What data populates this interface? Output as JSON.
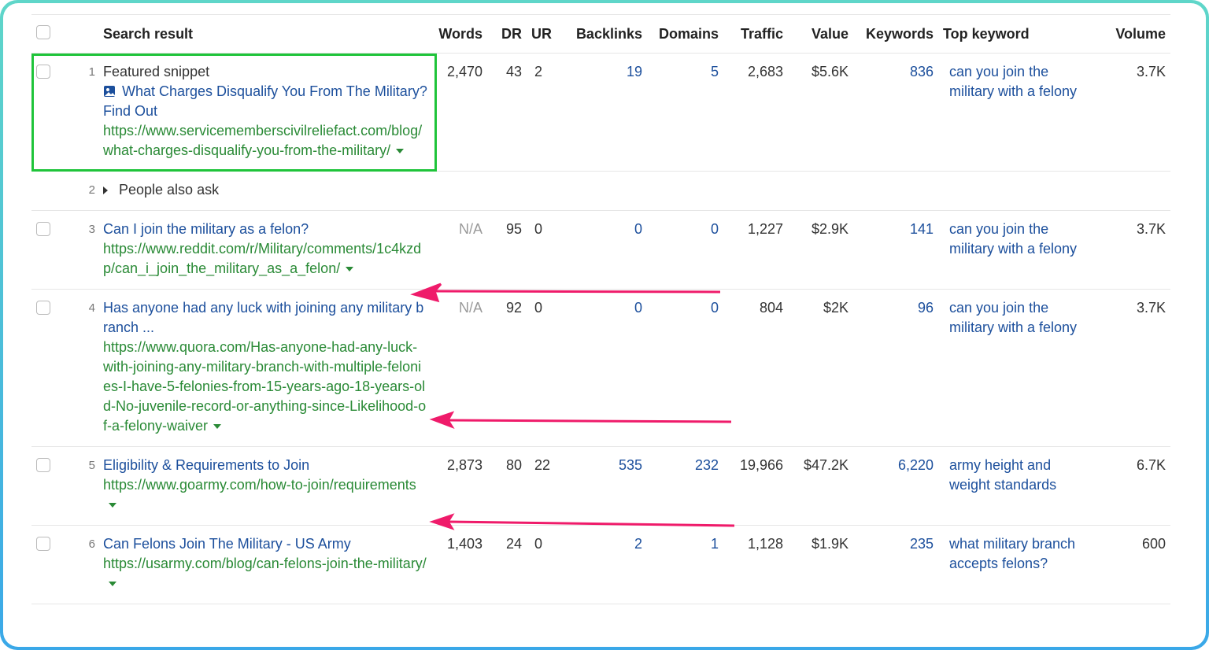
{
  "header": [
    "Search result",
    "Words",
    "DR",
    "UR",
    "Backlinks",
    "Domains",
    "Traffic",
    "Value",
    "Keywords",
    "Top keyword",
    "Volume"
  ],
  "rows": [
    {
      "position": "1",
      "label": "Featured snippet",
      "title": "What Charges Disqualify You From The Military? Find Out",
      "url": "https://www.servicememberscivilreliefact.com/blog/what-charges-disqualify-you-from-the-military/",
      "words": "2,470",
      "dr": "43",
      "ur": "2",
      "backlinks": "19",
      "domains": "5",
      "traffic": "2,683",
      "value": "$5.6K",
      "keywords": "836",
      "top_keyword": "can you join the military with a felony",
      "volume": "3.7K"
    },
    {
      "position": "2",
      "label": "People also ask"
    },
    {
      "position": "3",
      "title": "Can I join the military as a felon?",
      "url": "https://www.reddit.com/r/Military/comments/1c4kzdp/can_i_join_the_military_as_a_felon/",
      "words": "N/A",
      "dr": "95",
      "ur": "0",
      "backlinks": "0",
      "domains": "0",
      "traffic": "1,227",
      "value": "$2.9K",
      "keywords": "141",
      "top_keyword": "can you join the military with a felony",
      "volume": "3.7K"
    },
    {
      "position": "4",
      "title": "Has anyone had any luck with joining any military branch ...",
      "url": "https://www.quora.com/Has-anyone-had-any-luck-with-joining-any-military-branch-with-multiple-felonies-I-have-5-felonies-from-15-years-ago-18-years-old-No-juvenile-record-or-anything-since-Likelihood-of-a-felony-waiver",
      "words": "N/A",
      "dr": "92",
      "ur": "0",
      "backlinks": "0",
      "domains": "0",
      "traffic": "804",
      "value": "$2K",
      "keywords": "96",
      "top_keyword": "can you join the military with a felony",
      "volume": "3.7K"
    },
    {
      "position": "5",
      "title": "Eligibility & Requirements to Join",
      "url": "https://www.goarmy.com/how-to-join/requirements",
      "words": "2,873",
      "dr": "80",
      "ur": "22",
      "backlinks": "535",
      "domains": "232",
      "traffic": "19,966",
      "value": "$47.2K",
      "keywords": "6,220",
      "top_keyword": "army height and weight standards",
      "volume": "6.7K"
    },
    {
      "position": "6",
      "title": "Can Felons Join The Military - US Army",
      "url": "https://usarmy.com/blog/can-felons-join-the-military/",
      "words": "1,403",
      "dr": "24",
      "ur": "0",
      "backlinks": "2",
      "domains": "1",
      "traffic": "1,128",
      "value": "$1.9K",
      "keywords": "235",
      "top_keyword": "what military branch accepts felons?",
      "volume": "600"
    }
  ]
}
